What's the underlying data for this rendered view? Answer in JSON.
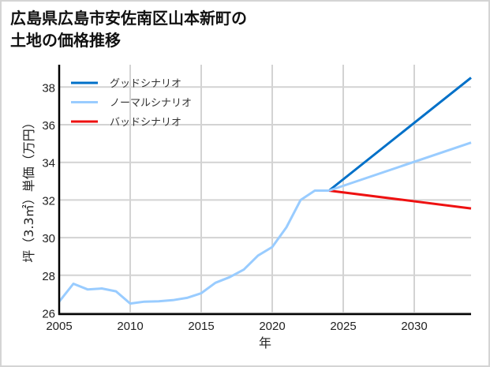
{
  "title_line1": "広島県広島市安佐南区山本新町の",
  "title_line2": "土地の価格推移",
  "chart_data": {
    "type": "line",
    "title": "広島県広島市安佐南区山本新町の土地の価格推移",
    "xlabel": "年",
    "ylabel": "坪（3.3㎡）単価（万円）",
    "xlim": [
      2005,
      2034
    ],
    "ylim": [
      26,
      39.2
    ],
    "x_ticks": [
      2005,
      2010,
      2015,
      2020,
      2025,
      2030
    ],
    "y_ticks": [
      26,
      28,
      30,
      32,
      34,
      36,
      38
    ],
    "grid": true,
    "legend_position": "upper left",
    "series": [
      {
        "name": "ノーマルシナリオ",
        "role": "historical",
        "color": "#99ccff",
        "x": [
          2005,
          2006,
          2007,
          2008,
          2009,
          2010,
          2011,
          2012,
          2013,
          2014,
          2015,
          2016,
          2017,
          2018,
          2019,
          2020,
          2021,
          2022,
          2023,
          2024
        ],
        "values": [
          26.6,
          27.55,
          27.25,
          27.3,
          27.15,
          26.5,
          26.6,
          26.62,
          26.68,
          26.8,
          27.05,
          27.6,
          27.9,
          28.3,
          29.05,
          29.5,
          30.55,
          32.0,
          32.5,
          32.5
        ]
      },
      {
        "name": "グッドシナリオ",
        "color": "#0070c8",
        "x": [
          2024,
          2034
        ],
        "values": [
          32.5,
          38.5
        ]
      },
      {
        "name": "ノーマルシナリオ",
        "color": "#99ccff",
        "x": [
          2024,
          2034
        ],
        "values": [
          32.5,
          35.05
        ]
      },
      {
        "name": "バッドシナリオ",
        "color": "#ee1111",
        "x": [
          2024,
          2034
        ],
        "values": [
          32.5,
          31.55
        ]
      }
    ]
  },
  "legend": [
    {
      "label": "グッドシナリオ",
      "color": "#0070c8"
    },
    {
      "label": "ノーマルシナリオ",
      "color": "#99ccff"
    },
    {
      "label": "バッドシナリオ",
      "color": "#ee1111"
    }
  ],
  "axes": {
    "xlabel": "年",
    "ylabel": "坪（3.3㎡）単価（万円）",
    "x_ticks": [
      "2005",
      "2010",
      "2015",
      "2020",
      "2025",
      "2030"
    ],
    "y_ticks": [
      "26",
      "28",
      "30",
      "32",
      "34",
      "36",
      "38"
    ]
  }
}
